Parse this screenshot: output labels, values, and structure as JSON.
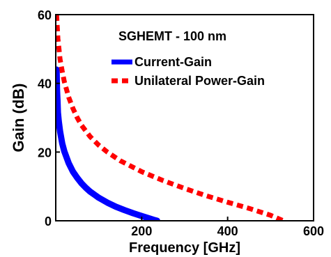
{
  "chart_data": {
    "type": "line",
    "title": "",
    "annotation": "SGHEMT - 100 nm",
    "xlabel": "Frequency [GHz]",
    "ylabel": "Gain (dB)",
    "xlim": [
      0,
      600
    ],
    "ylim": [
      0,
      60
    ],
    "xticks": [
      200,
      400,
      600
    ],
    "yticks": [
      0,
      20,
      40,
      60
    ],
    "grid": false,
    "legend_position": "top-right",
    "series": [
      {
        "name": "Current-Gain",
        "color": "#0000ff",
        "style": "solid",
        "x": [
          2,
          3,
          4,
          5,
          7,
          10,
          15,
          20,
          30,
          40,
          50,
          60,
          70,
          80,
          90,
          100,
          120,
          140,
          160,
          180,
          200,
          220,
          230,
          236
        ],
        "y": [
          44,
          38,
          35,
          31.5,
          29,
          26,
          22.5,
          20.2,
          16.8,
          14.3,
          12.5,
          10.9,
          9.6,
          8.5,
          7.6,
          6.7,
          5.3,
          4.1,
          3.1,
          2.2,
          1.4,
          0.6,
          0.2,
          0
        ]
      },
      {
        "name": "Unilateral Power-Gain",
        "color": "#ff0000",
        "style": "dashed",
        "x": [
          2,
          5,
          10,
          15,
          20,
          30,
          40,
          50,
          60,
          80,
          100,
          120,
          150,
          200,
          250,
          300,
          350,
          400,
          450,
          500,
          530
        ],
        "y": [
          60,
          53,
          47,
          43.5,
          40.5,
          36,
          32.7,
          30,
          27.8,
          24.5,
          22,
          20,
          17.5,
          14.3,
          11.7,
          9.4,
          7.3,
          5.4,
          3.6,
          1.6,
          0
        ]
      }
    ]
  }
}
